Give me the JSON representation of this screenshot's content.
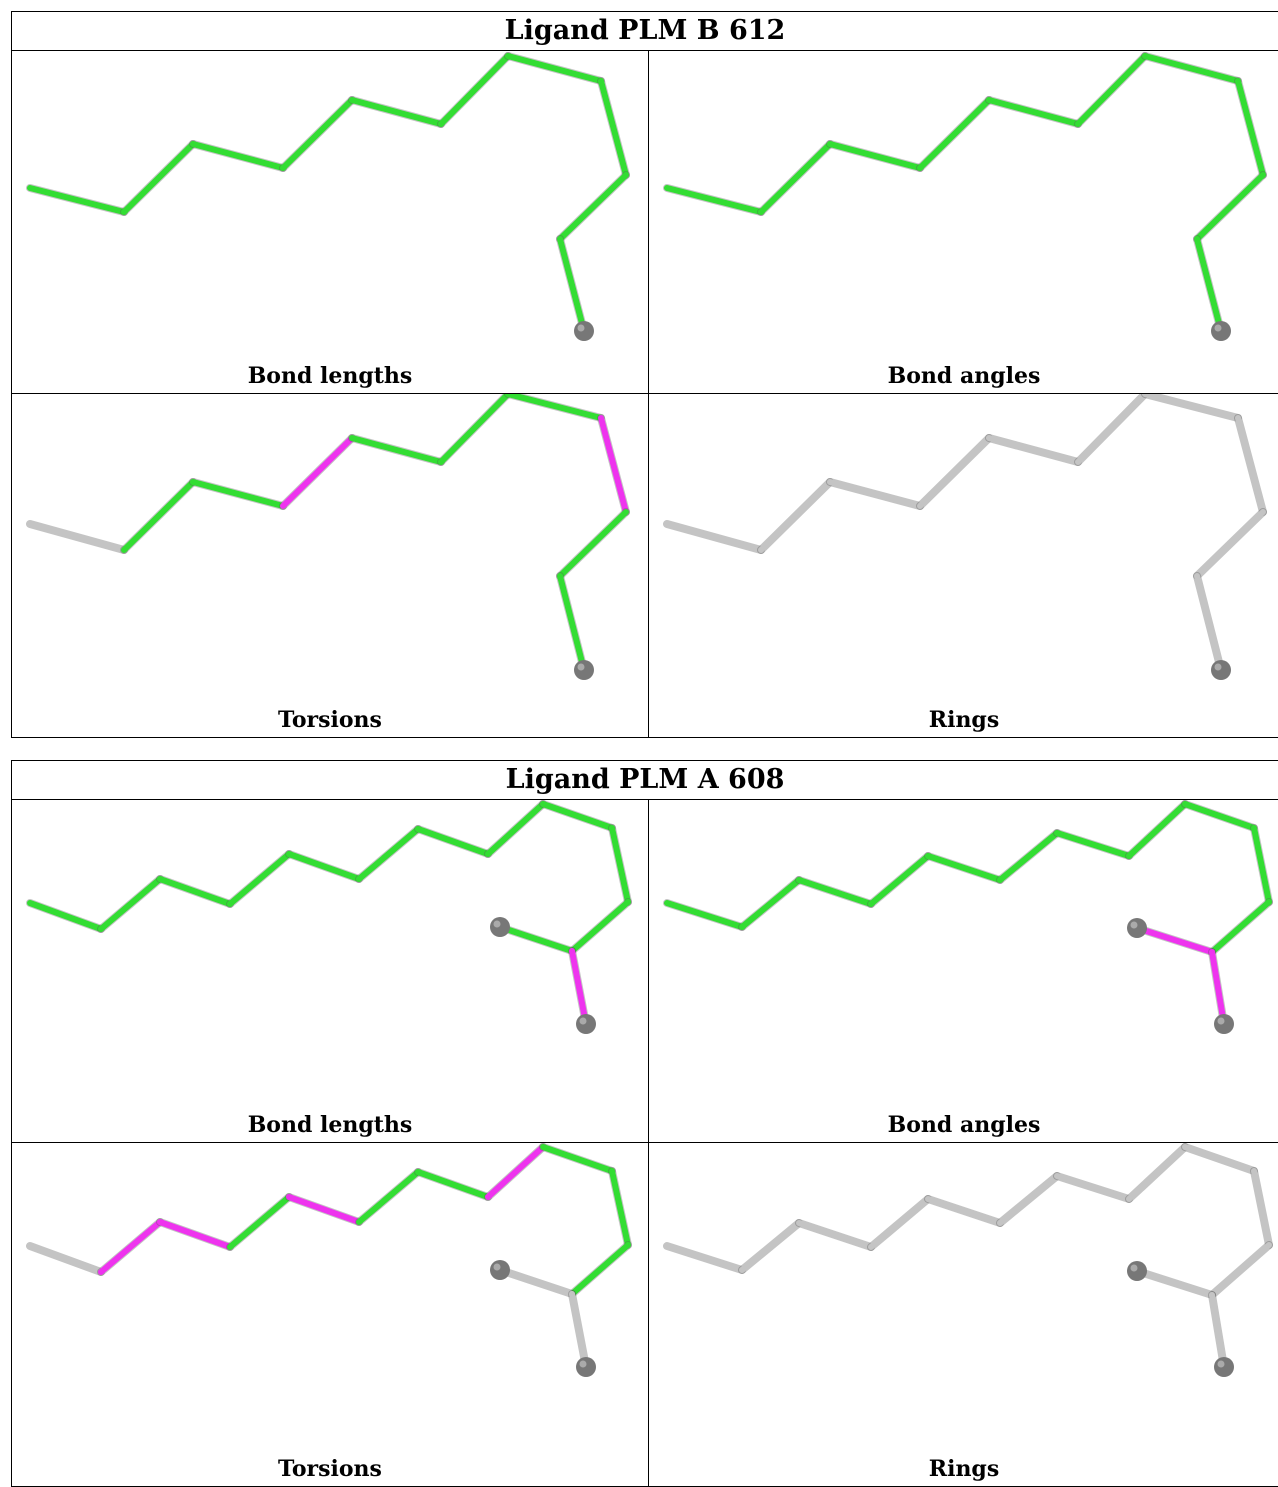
{
  "colors": {
    "ok": "#33dd33",
    "outlier": "#ee33ee",
    "neutral": "#c4c4c4",
    "atom": "#777777"
  },
  "tables": [
    {
      "title": "Ligand PLM B 612",
      "panels": [
        {
          "caption": "Bond lengths",
          "molecule": "b612_top",
          "coloring": [
            "g",
            "g",
            "g",
            "g",
            "g",
            "g",
            "g",
            "g",
            "g",
            "g",
            "n",
            "g"
          ]
        },
        {
          "caption": "Bond angles",
          "molecule": "b612_top",
          "coloring": [
            "g",
            "g",
            "g",
            "g",
            "g",
            "g",
            "g",
            "g",
            "g",
            "g",
            "g",
            "g"
          ]
        },
        {
          "caption": "Torsions",
          "molecule": "b612_bot",
          "coloring": [
            "n",
            "g",
            "g",
            "m",
            "g",
            "g",
            "g",
            "m",
            "g",
            "g",
            "g",
            "n"
          ]
        },
        {
          "caption": "Rings",
          "molecule": "b612_bot",
          "coloring": [
            "n",
            "n",
            "n",
            "n",
            "n",
            "n",
            "n",
            "n",
            "n",
            "n",
            "n",
            "n"
          ]
        }
      ]
    },
    {
      "title": "Ligand PLM A 608",
      "panels": [
        {
          "caption": "Bond lengths",
          "molecule": "a608_left",
          "coloring": [
            "g",
            "g",
            "g",
            "g",
            "g",
            "g",
            "g",
            "g",
            "g",
            "g",
            "g",
            "g",
            "m",
            "m"
          ]
        },
        {
          "caption": "Bond angles",
          "molecule": "a608_right",
          "coloring": [
            "g",
            "g",
            "g",
            "g",
            "g",
            "g",
            "g",
            "g",
            "g",
            "g",
            "g",
            "m",
            "m",
            "m"
          ]
        },
        {
          "caption": "Torsions",
          "molecule": "a608_left",
          "coloring": [
            "n",
            "m",
            "m",
            "g",
            "m",
            "g",
            "g",
            "m",
            "g",
            "g",
            "g",
            "n",
            "n",
            "n"
          ]
        },
        {
          "caption": "Rings",
          "molecule": "a608_right",
          "coloring": [
            "n",
            "n",
            "n",
            "n",
            "n",
            "n",
            "n",
            "n",
            "n",
            "n",
            "n",
            "n",
            "n",
            "n"
          ]
        }
      ]
    }
  ]
}
